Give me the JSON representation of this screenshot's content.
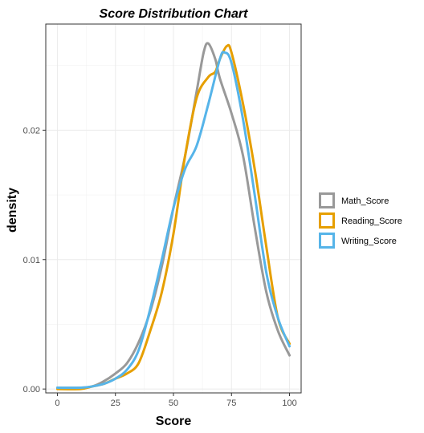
{
  "chart_data": {
    "type": "line",
    "title": "Score Distribution Chart",
    "xlabel": "Score",
    "ylabel": "density",
    "xlim": [
      -5,
      105
    ],
    "ylim": [
      -0.0003,
      0.0282
    ],
    "x_ticks": [
      0,
      25,
      50,
      75,
      100
    ],
    "y_ticks": [
      0.0,
      0.01,
      0.02
    ],
    "y_tick_labels": [
      "0.00",
      "0.01",
      "0.02"
    ],
    "grid": true,
    "legend_position": "right",
    "series": [
      {
        "name": "Math_Score",
        "color": "#999999",
        "points": [
          [
            0,
            0.0001
          ],
          [
            10,
            0.0001
          ],
          [
            15,
            0.0002
          ],
          [
            20,
            0.0006
          ],
          [
            25,
            0.0012
          ],
          [
            30,
            0.002
          ],
          [
            35,
            0.0036
          ],
          [
            40,
            0.006
          ],
          [
            45,
            0.0095
          ],
          [
            50,
            0.014
          ],
          [
            55,
            0.018
          ],
          [
            60,
            0.023
          ],
          [
            63,
            0.026
          ],
          [
            65,
            0.0267
          ],
          [
            68,
            0.0255
          ],
          [
            70,
            0.024
          ],
          [
            75,
            0.0213
          ],
          [
            80,
            0.018
          ],
          [
            85,
            0.0125
          ],
          [
            90,
            0.0075
          ],
          [
            95,
            0.0045
          ],
          [
            100,
            0.0026
          ]
        ]
      },
      {
        "name": "Reading_Score",
        "color": "#E69F00",
        "points": [
          [
            0,
            0.0
          ],
          [
            10,
            0.0
          ],
          [
            15,
            0.0002
          ],
          [
            20,
            0.0004
          ],
          [
            25,
            0.0008
          ],
          [
            30,
            0.0012
          ],
          [
            35,
            0.002
          ],
          [
            40,
            0.0045
          ],
          [
            45,
            0.0075
          ],
          [
            50,
            0.012
          ],
          [
            55,
            0.018
          ],
          [
            60,
            0.0225
          ],
          [
            65,
            0.0241
          ],
          [
            68,
            0.0245
          ],
          [
            70,
            0.0255
          ],
          [
            73,
            0.0265
          ],
          [
            75,
            0.026
          ],
          [
            80,
            0.022
          ],
          [
            85,
            0.017
          ],
          [
            90,
            0.011
          ],
          [
            95,
            0.0055
          ],
          [
            100,
            0.0035
          ]
        ]
      },
      {
        "name": "Writing_Score",
        "color": "#56B4E9",
        "points": [
          [
            0,
            0.0001
          ],
          [
            10,
            0.0001
          ],
          [
            15,
            0.0002
          ],
          [
            20,
            0.0004
          ],
          [
            25,
            0.0008
          ],
          [
            30,
            0.0015
          ],
          [
            35,
            0.003
          ],
          [
            40,
            0.0062
          ],
          [
            45,
            0.01
          ],
          [
            50,
            0.014
          ],
          [
            55,
            0.017
          ],
          [
            60,
            0.0188
          ],
          [
            65,
            0.022
          ],
          [
            70,
            0.0255
          ],
          [
            72,
            0.026
          ],
          [
            75,
            0.0252
          ],
          [
            80,
            0.0208
          ],
          [
            85,
            0.015
          ],
          [
            90,
            0.009
          ],
          [
            95,
            0.0055
          ],
          [
            100,
            0.0033
          ]
        ]
      }
    ]
  }
}
